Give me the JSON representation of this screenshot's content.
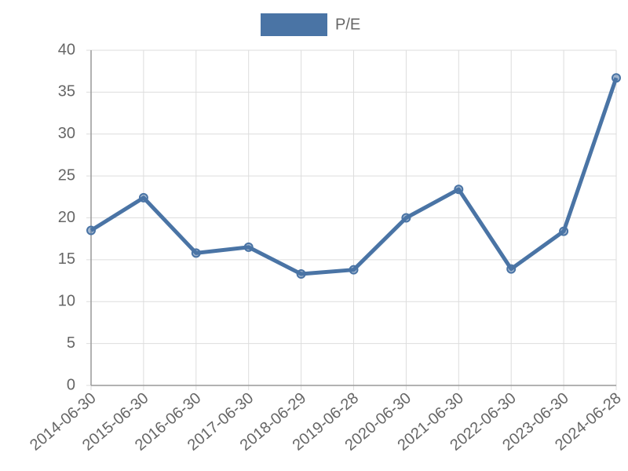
{
  "chart_data": {
    "type": "line",
    "categories": [
      "2014-06-30",
      "2015-06-30",
      "2016-06-30",
      "2017-06-30",
      "2018-06-29",
      "2019-06-28",
      "2020-06-30",
      "2021-06-30",
      "2022-06-30",
      "2023-06-30",
      "2024-06-28"
    ],
    "series": [
      {
        "name": "P/E",
        "color": "#4a74a5",
        "values": [
          18.5,
          22.4,
          15.8,
          16.5,
          13.3,
          13.8,
          20.0,
          23.4,
          13.9,
          18.4,
          36.7
        ]
      }
    ],
    "ylim": [
      0,
      40
    ],
    "yticks": [
      0,
      5,
      10,
      15,
      20,
      25,
      30,
      35,
      40
    ],
    "grid": true,
    "legend": "top"
  }
}
